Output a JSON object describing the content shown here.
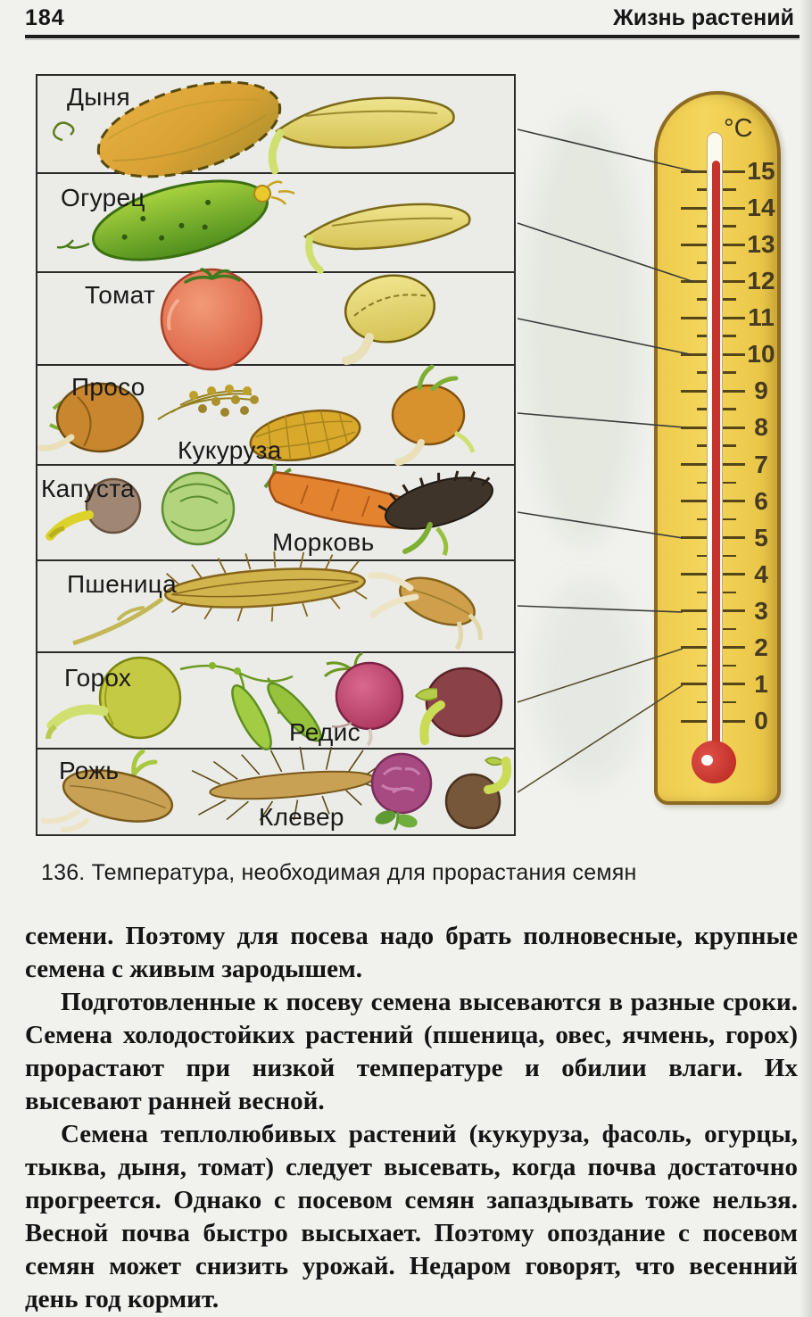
{
  "page": {
    "number": "184",
    "running_title": "Жизнь растений"
  },
  "figure": {
    "caption": "136. Температура, необходимая для прорастания семян",
    "rows": [
      {
        "label": "Дыня",
        "temperature_c": 15
      },
      {
        "label": "Огурец",
        "temperature_c": 12
      },
      {
        "label": "Томат",
        "temperature_c": 10
      },
      {
        "label": "Просо",
        "label2": "Кукуруза",
        "temperature_c": 8
      },
      {
        "label": "Капуста",
        "label2": "Морковь",
        "temperature_c": 5
      },
      {
        "label": "Пшеница",
        "temperature_c": 3
      },
      {
        "label": "Горох",
        "label2": "Редис",
        "temperature_c": 2
      },
      {
        "label": "Рожь",
        "label2": "Клевер",
        "temperature_c": 1
      }
    ],
    "thermometer": {
      "unit": "°C",
      "scale_min": 0,
      "scale_max": 15,
      "tick_step": 1,
      "tick_labels": [
        "15",
        "14",
        "13",
        "12",
        "11",
        "10",
        "9",
        "8",
        "7",
        "6",
        "5",
        "4",
        "3",
        "2",
        "1",
        "0"
      ],
      "colors": {
        "body": "#f2cf52",
        "border": "#8d6b22",
        "mercury": "#c5332c"
      }
    }
  },
  "body_text": {
    "paragraphs": [
      "семени. Поэтому для посева надо брать полновесные, крупные семена с живым зародышем.",
      "Подготовленные к посеву семена высеваются в разные сроки. Семена холодостойких растений (пшеница, овес, ячмень, горох) прорастают при низкой температуре и обилии влаги. Их высевают ранней весной.",
      "Семена теплолюбивых растений (кукуруза, фасоль, огурцы, тыква, дыня, томат) следует высевать, когда почва достаточно прогреется. Однако с посевом семян запаздывать тоже нельзя. Весной почва быстро высыхает. Поэтому опоздание с посевом семян может снизить урожай. Недаром говорят, что весенний день год кормит."
    ]
  }
}
